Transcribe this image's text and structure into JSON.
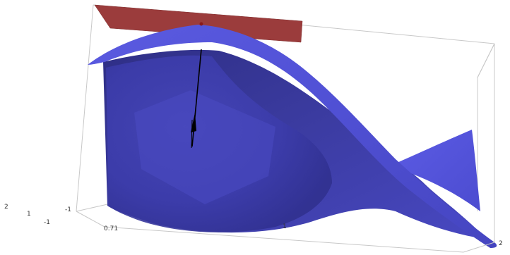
{
  "tick_labels": {
    "left_z_top": "2",
    "left_z_mid": "1",
    "left_y_neg": "-1",
    "left_x_neg": "-1",
    "front_x_start": "0.71",
    "front_x_mid": "1",
    "right_x_end": "2"
  },
  "colors": {
    "surface_blue": "#5858d8",
    "surface_dark": "#34348f",
    "tangent_plane_red": "#9b3c3c",
    "vector_black": "#000000",
    "box_lines": "#c8c8c8"
  }
}
